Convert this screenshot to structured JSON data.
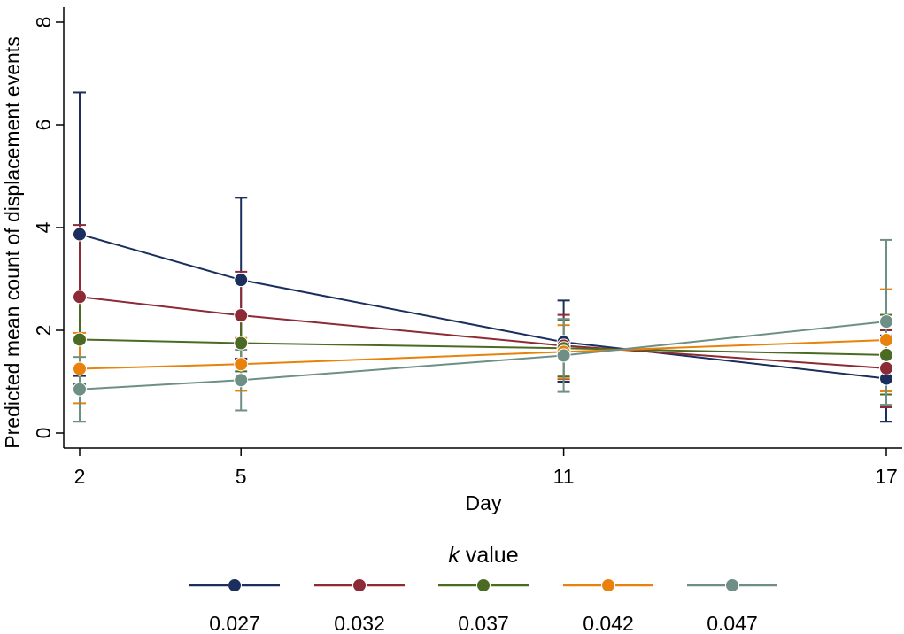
{
  "chart_data": {
    "type": "line",
    "title": "",
    "xlabel": "Day",
    "ylabel": "Predicted mean count of displacement events",
    "x": [
      2,
      5,
      11,
      17
    ],
    "x_ticks": [
      "2",
      "5",
      "11",
      "17"
    ],
    "y_ticks": [
      "0",
      "2",
      "4",
      "6",
      "8"
    ],
    "xlim": [
      2,
      17
    ],
    "ylim": [
      0,
      8
    ],
    "grid": false,
    "legend": {
      "title_italic": "k",
      "title_rest": " value",
      "placement": "bottom"
    },
    "series": [
      {
        "name": "0.027",
        "color": "#1a2f5e",
        "values": [
          3.87,
          2.98,
          1.77,
          1.06
        ],
        "ci_low": [
          1.11,
          1.45,
          1.0,
          0.22
        ],
        "ci_high": [
          6.63,
          4.58,
          2.58,
          1.9
        ]
      },
      {
        "name": "0.032",
        "color": "#8c2a35",
        "values": [
          2.65,
          2.29,
          1.7,
          1.26
        ],
        "ci_low": [
          1.25,
          1.44,
          1.05,
          0.5
        ],
        "ci_high": [
          4.05,
          3.14,
          2.3,
          2.0
        ]
      },
      {
        "name": "0.037",
        "color": "#4b6b23",
        "values": [
          1.82,
          1.75,
          1.65,
          1.52
        ],
        "ci_low": [
          0.95,
          1.2,
          1.1,
          0.75
        ],
        "ci_high": [
          2.7,
          2.3,
          2.2,
          2.3
        ]
      },
      {
        "name": "0.042",
        "color": "#e8820c",
        "values": [
          1.25,
          1.34,
          1.58,
          1.81
        ],
        "ci_low": [
          0.58,
          0.82,
          1.06,
          0.81
        ],
        "ci_high": [
          1.95,
          1.85,
          2.1,
          2.8
        ]
      },
      {
        "name": "0.047",
        "color": "#6e8f86",
        "values": [
          0.85,
          1.03,
          1.51,
          2.17
        ],
        "ci_low": [
          0.22,
          0.44,
          0.8,
          0.55
        ],
        "ci_high": [
          1.48,
          1.62,
          2.22,
          3.76
        ]
      }
    ]
  }
}
